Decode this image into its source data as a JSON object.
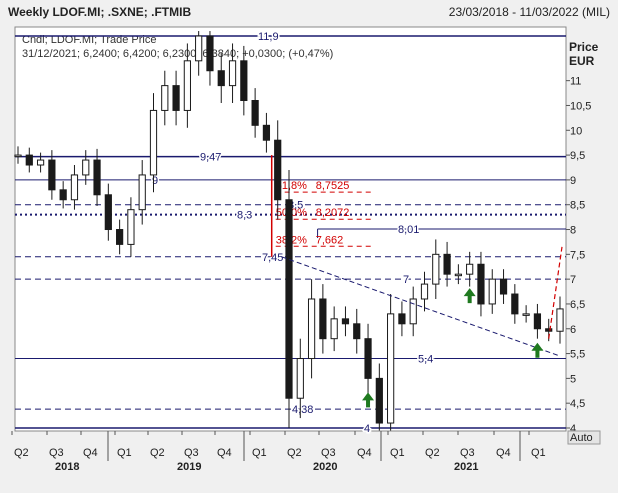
{
  "title_left": "Weekly LDOF.MI; .SXNE; .FTMIB",
  "title_right": "23/03/2018 - 11/03/2022 (MIL)",
  "legend": {
    "line1": "Cndl; LDOF.MI; Trade Price",
    "line2": "31/12/2021; 6,2400; 6,4200; 6,2300; 6,3840; +0,0300; (+0,47%)"
  },
  "axis": {
    "price_label": "Price",
    "currency_label": "EUR",
    "y_ticks": [
      "4",
      "4,5",
      "5",
      "5,5",
      "6",
      "6,5",
      "7",
      "7,5",
      "8",
      "8,5",
      "9",
      "9,5",
      "10",
      "10,5",
      "11"
    ],
    "auto_label": "Auto",
    "quarter_labels": [
      "Q2",
      "Q3",
      "Q4",
      "Q1",
      "Q2",
      "Q3",
      "Q4",
      "Q1",
      "Q2",
      "Q3",
      "Q4",
      "Q1",
      "Q2",
      "Q3",
      "Q4",
      "Q1"
    ],
    "year_labels": [
      "2018",
      "2019",
      "2020",
      "2021"
    ]
  },
  "colors": {
    "chart_bg": "#ffffff",
    "level_line": "#1a1a6e",
    "candle": "#1a1a1a",
    "fib": "#d20000",
    "arrow_up": "#1f7a1f",
    "axis_text": "#222222"
  },
  "chart_data": {
    "type": "candlestick",
    "x": [
      "2018-03",
      "2018-04",
      "2018-05",
      "2018-06",
      "2018-07",
      "2018-08",
      "2018-09",
      "2018-10",
      "2018-11",
      "2018-12",
      "2019-01",
      "2019-02",
      "2019-03",
      "2019-04",
      "2019-05",
      "2019-06",
      "2019-07",
      "2019-08",
      "2019-09",
      "2019-10",
      "2019-11",
      "2019-12",
      "2020-01",
      "2020-02",
      "2020-03",
      "2020-04",
      "2020-05",
      "2020-06",
      "2020-07",
      "2020-08",
      "2020-09",
      "2020-10",
      "2020-11",
      "2020-12",
      "2021-01",
      "2021-02",
      "2021-03",
      "2021-04",
      "2021-05",
      "2021-06",
      "2021-07",
      "2021-08",
      "2021-09",
      "2021-10",
      "2021-11",
      "2021-12",
      "2022-01",
      "2022-02",
      "2022-03"
    ],
    "close": [
      9.5,
      9.3,
      9.4,
      8.8,
      8.6,
      9.1,
      9.4,
      8.7,
      8.0,
      7.7,
      8.4,
      9.1,
      10.4,
      10.9,
      10.4,
      11.4,
      11.9,
      11.2,
      10.9,
      11.4,
      10.6,
      10.1,
      9.8,
      8.6,
      4.6,
      5.4,
      6.6,
      5.8,
      6.2,
      6.1,
      5.8,
      5.0,
      4.1,
      6.3,
      6.1,
      6.6,
      6.9,
      7.5,
      7.1,
      7.1,
      7.3,
      6.5,
      7.0,
      6.7,
      6.3,
      6.3,
      6.0,
      5.95,
      6.4
    ],
    "ylim": [
      3.95,
      12.0
    ],
    "levels": [
      11.9,
      9.47,
      9.0,
      8.5,
      8.3,
      8.01,
      7.45,
      7.0,
      5.4,
      4.38,
      4.0
    ],
    "level_labels": [
      "11,9",
      "9,47",
      "9",
      "8,5",
      "8,3",
      "8,01",
      "7,45",
      "7",
      "5,4",
      "4,38",
      "4"
    ],
    "fibonacci": [
      {
        "label": "61,8%",
        "value": "8,7525",
        "price": 8.7525
      },
      {
        "label": "50,0%",
        "value": "8,2072",
        "price": 8.2072
      },
      {
        "label": "38,2%",
        "value": "7,662",
        "price": 7.662
      }
    ],
    "trendline": {
      "from": [
        "2020-02",
        7.45
      ],
      "to": [
        "2022-03",
        5.45
      ]
    },
    "projection": {
      "from": [
        "2022-02",
        5.8
      ],
      "to": [
        "2022-03",
        7.65
      ]
    },
    "up_arrows": [
      "2020-10",
      "2021-07",
      "2022-01"
    ]
  }
}
